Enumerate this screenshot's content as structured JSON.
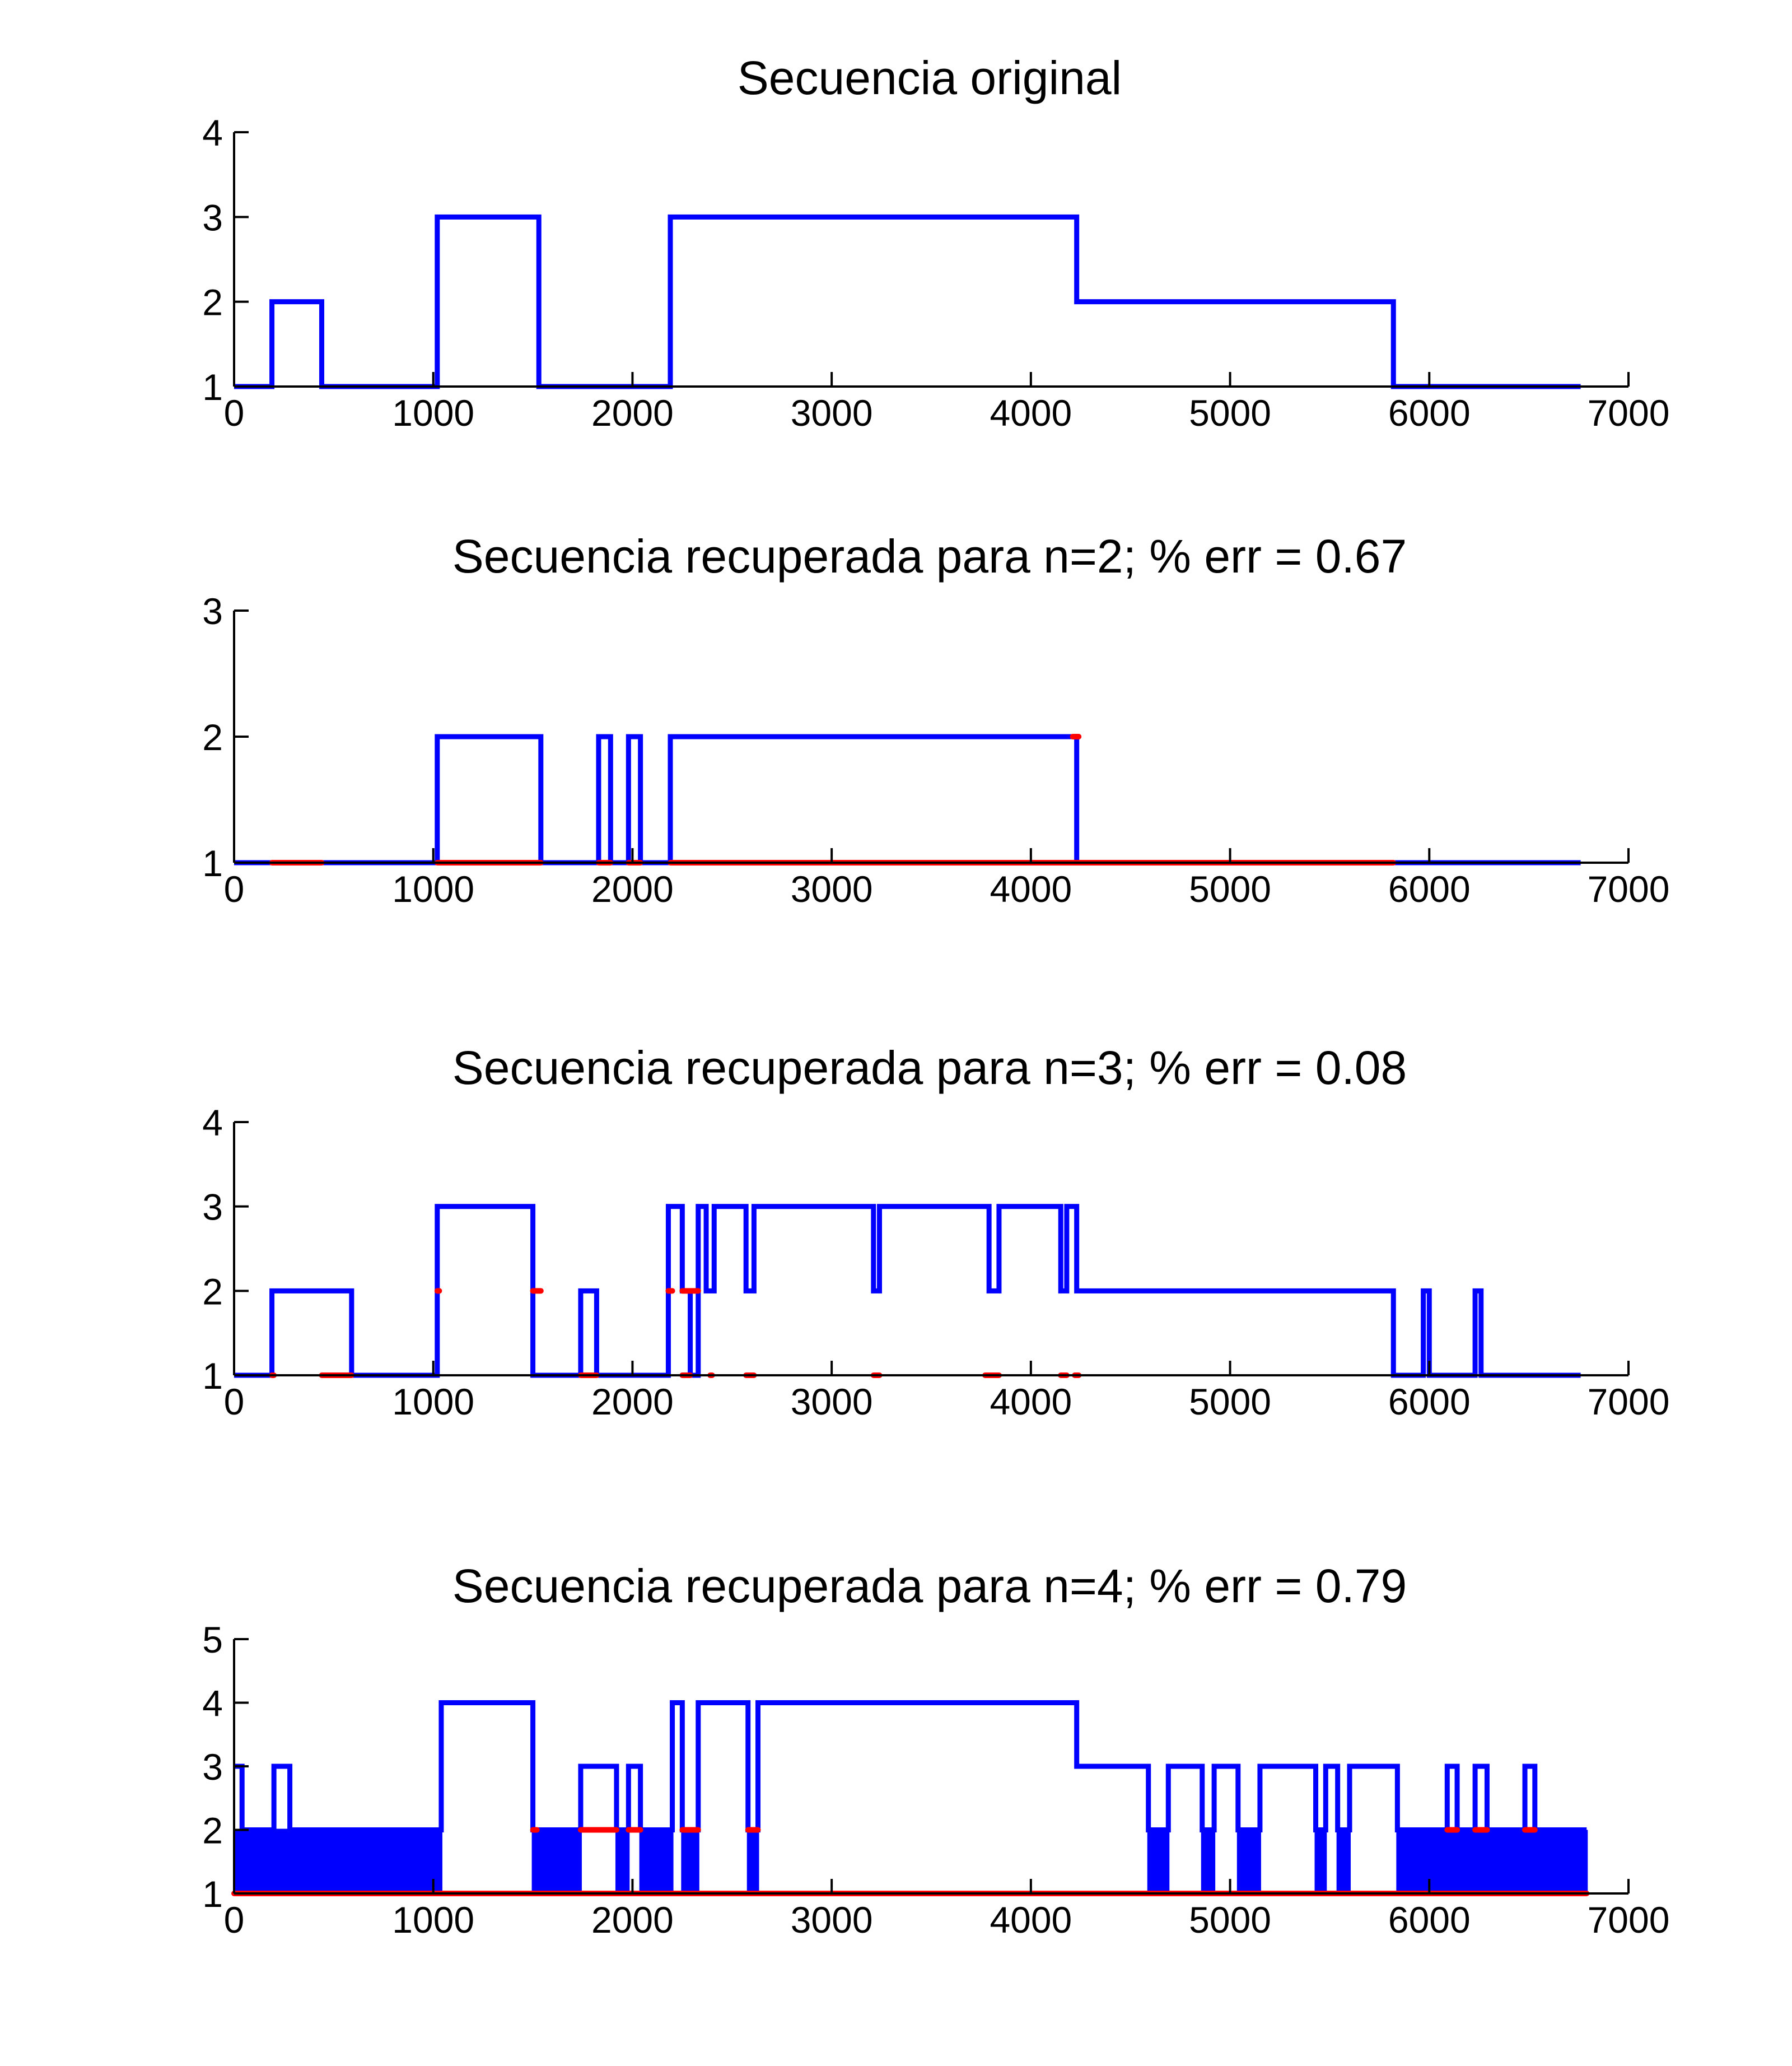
{
  "chart_data": [
    {
      "type": "line",
      "title": "Secuencia original",
      "xlabel": "",
      "ylabel": "",
      "xlim": [
        0,
        7000
      ],
      "ylim": [
        1,
        4
      ],
      "xticks": [
        0,
        1000,
        2000,
        3000,
        4000,
        5000,
        6000,
        7000
      ],
      "yticks": [
        1,
        2,
        3,
        4
      ],
      "grid": false,
      "colors": {
        "series": "#0000ff"
      },
      "series": [
        {
          "name": "",
          "color": "#0000ff",
          "segments": [
            [
              0,
              1
            ],
            [
              190,
              2
            ],
            [
              440,
              1
            ],
            [
              1020,
              3
            ],
            [
              1530,
              1
            ],
            [
              2190,
              3
            ],
            [
              4230,
              2
            ],
            [
              5820,
              1
            ],
            [
              6760,
              1
            ]
          ]
        }
      ]
    },
    {
      "type": "line",
      "title": "Secuencia recuperada para n=2; % err = 0.67",
      "xlabel": "",
      "ylabel": "",
      "xlim": [
        0,
        7000
      ],
      "ylim": [
        1,
        3
      ],
      "xticks": [
        0,
        1000,
        2000,
        3000,
        4000,
        5000,
        6000,
        7000
      ],
      "yticks": [
        1,
        2,
        3
      ],
      "grid": false,
      "colors": {
        "series": "#0000ff",
        "errors": "#ff0000"
      },
      "series": [
        {
          "name": "",
          "color": "#0000ff",
          "segments": [
            [
              0,
              1
            ],
            [
              1020,
              2
            ],
            [
              1540,
              1
            ],
            [
              1830,
              2
            ],
            [
              1890,
              1
            ],
            [
              1980,
              2
            ],
            [
              2040,
              1
            ],
            [
              2190,
              2
            ],
            [
              4230,
              1
            ],
            [
              6760,
              1
            ]
          ]
        }
      ],
      "error_marks": [
        {
          "x1": 190,
          "x2": 440,
          "y": 1
        },
        {
          "x1": 1020,
          "x2": 1540,
          "y": 1
        },
        {
          "x1": 1830,
          "x2": 1890,
          "y": 1
        },
        {
          "x1": 1980,
          "x2": 2040,
          "y": 1
        },
        {
          "x1": 2190,
          "x2": 5820,
          "y": 1
        },
        {
          "x1": 4210,
          "x2": 4240,
          "y": 2
        }
      ]
    },
    {
      "type": "line",
      "title": "Secuencia recuperada para n=3; % err = 0.08",
      "xlabel": "",
      "ylabel": "",
      "xlim": [
        0,
        7000
      ],
      "ylim": [
        1,
        4
      ],
      "xticks": [
        0,
        1000,
        2000,
        3000,
        4000,
        5000,
        6000,
        7000
      ],
      "yticks": [
        1,
        2,
        3,
        4
      ],
      "grid": false,
      "colors": {
        "series": "#0000ff",
        "errors": "#ff0000"
      },
      "series": [
        {
          "name": "",
          "color": "#0000ff",
          "segments": [
            [
              0,
              1
            ],
            [
              190,
              2
            ],
            [
              590,
              1
            ],
            [
              1020,
              3
            ],
            [
              1500,
              1
            ],
            [
              1740,
              2
            ],
            [
              1820,
              1
            ],
            [
              2180,
              3
            ],
            [
              2250,
              2
            ],
            [
              2290,
              1
            ],
            [
              2330,
              3
            ],
            [
              2370,
              2
            ],
            [
              2410,
              3
            ],
            [
              2570,
              2
            ],
            [
              2610,
              3
            ],
            [
              3210,
              2
            ],
            [
              3240,
              3
            ],
            [
              3790,
              2
            ],
            [
              3840,
              3
            ],
            [
              4150,
              2
            ],
            [
              4180,
              3
            ],
            [
              4230,
              2
            ],
            [
              5820,
              1
            ],
            [
              5970,
              2
            ],
            [
              6000,
              1
            ],
            [
              6230,
              2
            ],
            [
              6260,
              1
            ],
            [
              6760,
              1
            ]
          ]
        }
      ],
      "error_marks": [
        {
          "x1": 190,
          "x2": 200,
          "y": 1
        },
        {
          "x1": 440,
          "x2": 590,
          "y": 1
        },
        {
          "x1": 1020,
          "x2": 1030,
          "y": 2
        },
        {
          "x1": 1500,
          "x2": 1540,
          "y": 2
        },
        {
          "x1": 1740,
          "x2": 1820,
          "y": 1
        },
        {
          "x1": 2180,
          "x2": 2200,
          "y": 2
        },
        {
          "x1": 2250,
          "x2": 2330,
          "y": 2
        },
        {
          "x1": 2250,
          "x2": 2290,
          "y": 1
        },
        {
          "x1": 2390,
          "x2": 2400,
          "y": 1
        },
        {
          "x1": 2570,
          "x2": 2610,
          "y": 1
        },
        {
          "x1": 3210,
          "x2": 3240,
          "y": 1
        },
        {
          "x1": 3770,
          "x2": 3840,
          "y": 1
        },
        {
          "x1": 4150,
          "x2": 4180,
          "y": 1
        },
        {
          "x1": 4220,
          "x2": 4240,
          "y": 1
        }
      ]
    },
    {
      "type": "line",
      "title": "Secuencia recuperada para n=4; % err = 0.79",
      "xlabel": "",
      "ylabel": "",
      "xlim": [
        0,
        7000
      ],
      "ylim": [
        1,
        5
      ],
      "xticks": [
        0,
        1000,
        2000,
        3000,
        4000,
        5000,
        6000,
        7000
      ],
      "yticks": [
        1,
        2,
        3,
        4,
        5
      ],
      "grid": false,
      "colors": {
        "series": "#0000ff",
        "errors": "#ff0000"
      },
      "series": [
        {
          "name": "",
          "color": "#0000ff",
          "segments": [
            [
              0,
              3
            ],
            [
              40,
              2
            ],
            [
              200,
              3
            ],
            [
              280,
              2
            ],
            [
              1040,
              4
            ],
            [
              1500,
              2
            ],
            [
              1740,
              3
            ],
            [
              1920,
              2
            ],
            [
              1980,
              3
            ],
            [
              2040,
              2
            ],
            [
              2200,
              4
            ],
            [
              2250,
              2
            ],
            [
              2330,
              4
            ],
            [
              2580,
              2
            ],
            [
              2630,
              4
            ],
            [
              4230,
              3
            ],
            [
              4590,
              2
            ],
            [
              4690,
              3
            ],
            [
              4860,
              2
            ],
            [
              4920,
              3
            ],
            [
              5040,
              2
            ],
            [
              5150,
              3
            ],
            [
              5430,
              2
            ],
            [
              5480,
              3
            ],
            [
              5540,
              2
            ],
            [
              5600,
              3
            ],
            [
              5840,
              2
            ],
            [
              6090,
              3
            ],
            [
              6140,
              2
            ],
            [
              6230,
              3
            ],
            [
              6290,
              2
            ],
            [
              6480,
              3
            ],
            [
              6530,
              2
            ],
            [
              6790,
              2
            ]
          ]
        }
      ],
      "oscillations": [
        {
          "x1": 0,
          "x2": 1040,
          "y1": 1,
          "y2": 2
        },
        {
          "x1": 1500,
          "x2": 1740,
          "y1": 1,
          "y2": 2
        },
        {
          "x1": 1920,
          "x2": 1980,
          "y1": 1,
          "y2": 2
        },
        {
          "x1": 2040,
          "x2": 2200,
          "y1": 1,
          "y2": 2
        },
        {
          "x1": 2250,
          "x2": 2330,
          "y1": 1,
          "y2": 2
        },
        {
          "x1": 2580,
          "x2": 2630,
          "y1": 1,
          "y2": 2
        },
        {
          "x1": 4590,
          "x2": 4690,
          "y1": 1,
          "y2": 2
        },
        {
          "x1": 4860,
          "x2": 4920,
          "y1": 1,
          "y2": 2
        },
        {
          "x1": 5040,
          "x2": 5150,
          "y1": 1,
          "y2": 2
        },
        {
          "x1": 5430,
          "x2": 5480,
          "y1": 1,
          "y2": 2
        },
        {
          "x1": 5540,
          "x2": 5600,
          "y1": 1,
          "y2": 2
        },
        {
          "x1": 5840,
          "x2": 6790,
          "y1": 1,
          "y2": 2
        }
      ],
      "error_marks": [
        {
          "x1": 0,
          "x2": 6790,
          "y": 1
        },
        {
          "x1": 1500,
          "x2": 1520,
          "y": 2
        },
        {
          "x1": 1740,
          "x2": 1920,
          "y": 2
        },
        {
          "x1": 1980,
          "x2": 2040,
          "y": 2
        },
        {
          "x1": 2250,
          "x2": 2330,
          "y": 2
        },
        {
          "x1": 2580,
          "x2": 2630,
          "y": 2
        },
        {
          "x1": 6090,
          "x2": 6140,
          "y": 2
        },
        {
          "x1": 6230,
          "x2": 6290,
          "y": 2
        },
        {
          "x1": 6480,
          "x2": 6530,
          "y": 2
        }
      ]
    }
  ]
}
